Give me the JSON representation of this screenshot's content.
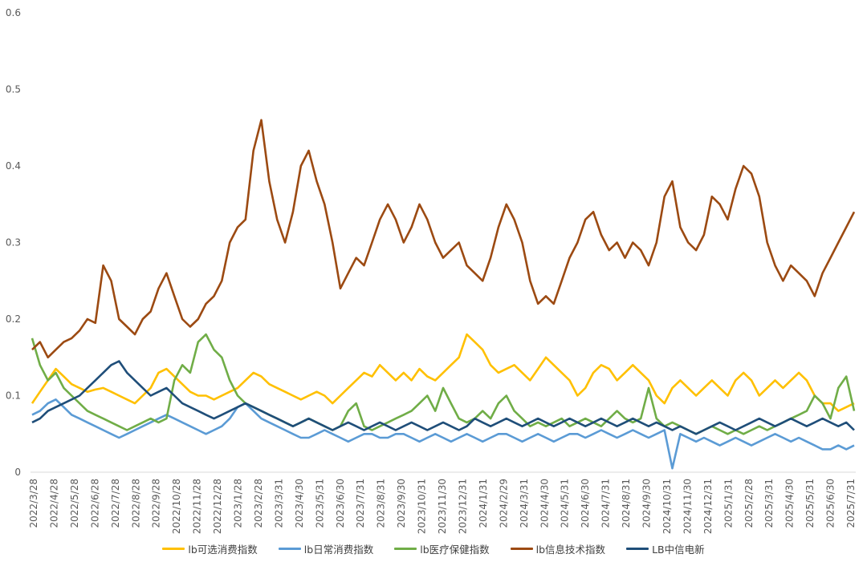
{
  "chart_data": {
    "type": "line",
    "title": "",
    "xlabel": "",
    "ylabel": "",
    "ylim": [
      0,
      0.6
    ],
    "yticks": [
      "0",
      "0.1",
      "0.2",
      "0.3",
      "0.4",
      "0.5",
      "0.6"
    ],
    "grid": false,
    "legend": "bottom",
    "xticks": [
      "2022/3/28",
      "2022/4/28",
      "2022/5/28",
      "2022/6/28",
      "2022/7/28",
      "2022/8/28",
      "2022/9/28",
      "2022/10/28",
      "2022/11/28",
      "2022/12/28",
      "2023/1/28",
      "2023/2/28",
      "2023/3/31",
      "2023/4/30",
      "2023/5/31",
      "2023/6/30",
      "2023/7/31",
      "2023/8/31",
      "2023/9/30",
      "2023/10/31",
      "2023/11/30",
      "2023/12/31",
      "2024/1/31",
      "2024/2/29",
      "2024/3/31",
      "2024/4/30",
      "2024/5/31",
      "2024/6/30",
      "2024/7/31",
      "2024/8/31",
      "2024/9/30",
      "2024/10/31",
      "2024/11/30",
      "2024/12/31",
      "2025/1/31",
      "2025/2/28",
      "2025/3/31",
      "2025/4/30",
      "2025/5/31",
      "2025/6/30",
      "2025/7/31"
    ],
    "series": [
      {
        "name": "lb可选消费指数",
        "color": "#FFC000",
        "values": [
          0.09,
          0.105,
          0.12,
          0.135,
          0.125,
          0.115,
          0.11,
          0.105,
          0.108,
          0.11,
          0.105,
          0.1,
          0.095,
          0.09,
          0.1,
          0.11,
          0.13,
          0.135,
          0.125,
          0.115,
          0.105,
          0.1,
          0.1,
          0.095,
          0.1,
          0.105,
          0.11,
          0.12,
          0.13,
          0.125,
          0.115,
          0.11,
          0.105,
          0.1,
          0.095,
          0.1,
          0.105,
          0.1,
          0.09,
          0.1,
          0.11,
          0.12,
          0.13,
          0.125,
          0.14,
          0.13,
          0.12,
          0.13,
          0.12,
          0.135,
          0.125,
          0.12,
          0.13,
          0.14,
          0.15,
          0.18,
          0.17,
          0.16,
          0.14,
          0.13,
          0.135,
          0.14,
          0.13,
          0.12,
          0.135,
          0.15,
          0.14,
          0.13,
          0.12,
          0.1,
          0.11,
          0.13,
          0.14,
          0.135,
          0.12,
          0.13,
          0.14,
          0.13,
          0.12,
          0.1,
          0.09,
          0.11,
          0.12,
          0.11,
          0.1,
          0.11,
          0.12,
          0.11,
          0.1,
          0.12,
          0.13,
          0.12,
          0.1,
          0.11,
          0.12,
          0.11,
          0.12,
          0.13,
          0.12,
          0.1,
          0.09,
          0.09,
          0.08,
          0.085,
          0.09
        ]
      },
      {
        "name": "lb日常消费指数",
        "color": "#5B9BD5",
        "values": [
          0.075,
          0.08,
          0.09,
          0.095,
          0.085,
          0.075,
          0.07,
          0.065,
          0.06,
          0.055,
          0.05,
          0.045,
          0.05,
          0.055,
          0.06,
          0.065,
          0.07,
          0.075,
          0.07,
          0.065,
          0.06,
          0.055,
          0.05,
          0.055,
          0.06,
          0.07,
          0.085,
          0.09,
          0.08,
          0.07,
          0.065,
          0.06,
          0.055,
          0.05,
          0.045,
          0.045,
          0.05,
          0.055,
          0.05,
          0.045,
          0.04,
          0.045,
          0.05,
          0.05,
          0.045,
          0.045,
          0.05,
          0.05,
          0.045,
          0.04,
          0.045,
          0.05,
          0.045,
          0.04,
          0.045,
          0.05,
          0.045,
          0.04,
          0.045,
          0.05,
          0.05,
          0.045,
          0.04,
          0.045,
          0.05,
          0.045,
          0.04,
          0.045,
          0.05,
          0.05,
          0.045,
          0.05,
          0.055,
          0.05,
          0.045,
          0.05,
          0.055,
          0.05,
          0.045,
          0.05,
          0.055,
          0.005,
          0.05,
          0.045,
          0.04,
          0.045,
          0.04,
          0.035,
          0.04,
          0.045,
          0.04,
          0.035,
          0.04,
          0.045,
          0.05,
          0.045,
          0.04,
          0.045,
          0.04,
          0.035,
          0.03,
          0.03,
          0.035,
          0.03,
          0.035
        ]
      },
      {
        "name": "lb医疗保健指数",
        "color": "#70AD47",
        "values": [
          0.175,
          0.14,
          0.12,
          0.13,
          0.11,
          0.1,
          0.09,
          0.08,
          0.075,
          0.07,
          0.065,
          0.06,
          0.055,
          0.06,
          0.065,
          0.07,
          0.065,
          0.07,
          0.12,
          0.14,
          0.13,
          0.17,
          0.18,
          0.16,
          0.15,
          0.12,
          0.1,
          0.09,
          0.085,
          0.08,
          0.075,
          0.07,
          0.065,
          0.06,
          0.065,
          0.07,
          0.065,
          0.06,
          0.055,
          0.06,
          0.08,
          0.09,
          0.06,
          0.055,
          0.06,
          0.065,
          0.07,
          0.075,
          0.08,
          0.09,
          0.1,
          0.08,
          0.11,
          0.09,
          0.07,
          0.065,
          0.07,
          0.08,
          0.07,
          0.09,
          0.1,
          0.08,
          0.07,
          0.06,
          0.065,
          0.06,
          0.065,
          0.07,
          0.06,
          0.065,
          0.07,
          0.065,
          0.06,
          0.07,
          0.08,
          0.07,
          0.065,
          0.07,
          0.11,
          0.07,
          0.06,
          0.065,
          0.06,
          0.055,
          0.05,
          0.055,
          0.06,
          0.055,
          0.05,
          0.055,
          0.05,
          0.055,
          0.06,
          0.055,
          0.06,
          0.065,
          0.07,
          0.075,
          0.08,
          0.1,
          0.09,
          0.07,
          0.11,
          0.125,
          0.08
        ]
      },
      {
        "name": "lb信息技术指数",
        "color": "#9C4A12",
        "values": [
          0.16,
          0.17,
          0.15,
          0.16,
          0.17,
          0.175,
          0.185,
          0.2,
          0.195,
          0.27,
          0.25,
          0.2,
          0.19,
          0.18,
          0.2,
          0.21,
          0.24,
          0.26,
          0.23,
          0.2,
          0.19,
          0.2,
          0.22,
          0.23,
          0.25,
          0.3,
          0.32,
          0.33,
          0.42,
          0.46,
          0.38,
          0.33,
          0.3,
          0.34,
          0.4,
          0.42,
          0.38,
          0.35,
          0.3,
          0.24,
          0.26,
          0.28,
          0.27,
          0.3,
          0.33,
          0.35,
          0.33,
          0.3,
          0.32,
          0.35,
          0.33,
          0.3,
          0.28,
          0.29,
          0.3,
          0.27,
          0.26,
          0.25,
          0.28,
          0.32,
          0.35,
          0.33,
          0.3,
          0.25,
          0.22,
          0.23,
          0.22,
          0.25,
          0.28,
          0.3,
          0.33,
          0.34,
          0.31,
          0.29,
          0.3,
          0.28,
          0.3,
          0.29,
          0.27,
          0.3,
          0.36,
          0.38,
          0.32,
          0.3,
          0.29,
          0.31,
          0.36,
          0.35,
          0.33,
          0.37,
          0.4,
          0.39,
          0.36,
          0.3,
          0.27,
          0.25,
          0.27,
          0.26,
          0.25,
          0.23,
          0.26,
          0.28,
          0.3,
          0.32,
          0.34
        ]
      },
      {
        "name": "LB中信电新",
        "color": "#1F4E79",
        "values": [
          0.065,
          0.07,
          0.08,
          0.085,
          0.09,
          0.095,
          0.1,
          0.11,
          0.12,
          0.13,
          0.14,
          0.145,
          0.13,
          0.12,
          0.11,
          0.1,
          0.105,
          0.11,
          0.1,
          0.09,
          0.085,
          0.08,
          0.075,
          0.07,
          0.075,
          0.08,
          0.085,
          0.09,
          0.085,
          0.08,
          0.075,
          0.07,
          0.065,
          0.06,
          0.065,
          0.07,
          0.065,
          0.06,
          0.055,
          0.06,
          0.065,
          0.06,
          0.055,
          0.06,
          0.065,
          0.06,
          0.055,
          0.06,
          0.065,
          0.06,
          0.055,
          0.06,
          0.065,
          0.06,
          0.055,
          0.06,
          0.07,
          0.065,
          0.06,
          0.065,
          0.07,
          0.065,
          0.06,
          0.065,
          0.07,
          0.065,
          0.06,
          0.065,
          0.07,
          0.065,
          0.06,
          0.065,
          0.07,
          0.065,
          0.06,
          0.065,
          0.07,
          0.065,
          0.06,
          0.065,
          0.06,
          0.055,
          0.06,
          0.055,
          0.05,
          0.055,
          0.06,
          0.065,
          0.06,
          0.055,
          0.06,
          0.065,
          0.07,
          0.065,
          0.06,
          0.065,
          0.07,
          0.065,
          0.06,
          0.065,
          0.07,
          0.065,
          0.06,
          0.065,
          0.055
        ]
      }
    ]
  }
}
